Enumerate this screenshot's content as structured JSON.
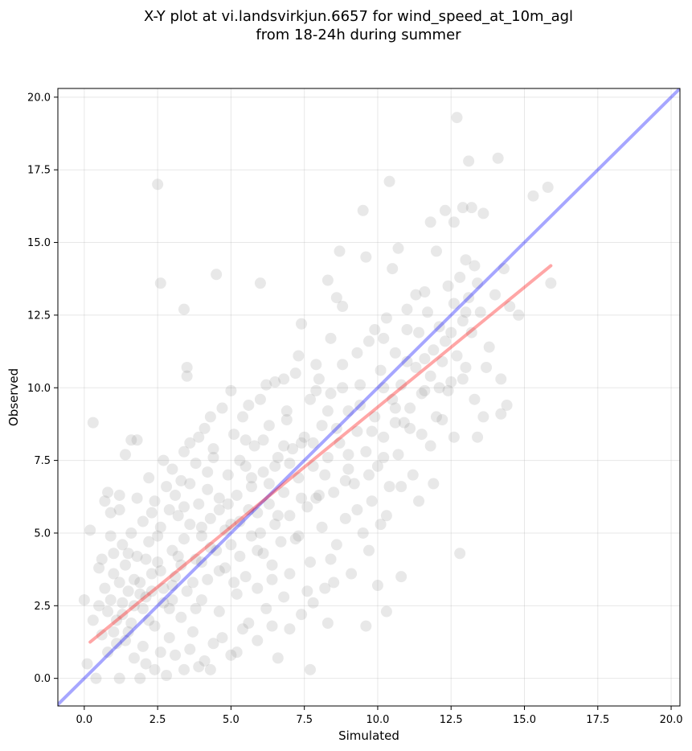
{
  "chart_data": {
    "type": "scatter",
    "title_line1": "X-Y plot at vi.landsvirkjun.6657 for wind_speed_at_10m_agl",
    "title_line2": "from 18-24h during summer",
    "xlabel": "Simulated",
    "ylabel": "Observed",
    "xlim": [
      -0.9,
      20.3
    ],
    "ylim": [
      -0.95,
      20.3
    ],
    "xticks": [
      0.0,
      2.5,
      5.0,
      7.5,
      10.0,
      12.5,
      15.0,
      17.5,
      20.0
    ],
    "yticks": [
      0.0,
      2.5,
      5.0,
      7.5,
      10.0,
      12.5,
      15.0,
      17.5,
      20.0
    ],
    "xtick_labels": [
      "0.0",
      "2.5",
      "5.0",
      "7.5",
      "10.0",
      "12.5",
      "15.0",
      "17.5",
      "20.0"
    ],
    "ytick_labels": [
      "0.0",
      "2.5",
      "5.0",
      "7.5",
      "10.0",
      "12.5",
      "15.0",
      "17.5",
      "20.0"
    ],
    "grid": true,
    "point_color": "#808080",
    "identity_line_color": "#0000ff",
    "fit_line_color": "#ff0000",
    "identity_line": {
      "x": [
        -0.9,
        20.3
      ],
      "y": [
        -0.9,
        20.3
      ]
    },
    "fit_line": {
      "x": [
        0.2,
        15.9
      ],
      "y": [
        1.25,
        14.2
      ]
    },
    "points": [
      [
        0.3,
        8.8
      ],
      [
        0.2,
        5.1
      ],
      [
        0.5,
        2.5
      ],
      [
        0.6,
        4.1
      ],
      [
        0.7,
        6.1
      ],
      [
        0.8,
        6.4
      ],
      [
        0.9,
        5.7
      ],
      [
        1.0,
        4.3
      ],
      [
        1.2,
        6.3
      ],
      [
        1.4,
        7.7
      ],
      [
        1.6,
        8.2
      ],
      [
        1.8,
        8.2
      ],
      [
        2.5,
        17.0
      ],
      [
        2.6,
        13.6
      ],
      [
        3.4,
        12.7
      ],
      [
        3.5,
        10.7
      ],
      [
        3.5,
        10.4
      ],
      [
        4.5,
        13.9
      ],
      [
        6.0,
        13.6
      ],
      [
        7.4,
        12.2
      ],
      [
        8.6,
        13.1
      ],
      [
        8.7,
        14.7
      ],
      [
        8.8,
        12.8
      ],
      [
        8.3,
        13.7
      ],
      [
        9.3,
        11.2
      ],
      [
        9.5,
        16.1
      ],
      [
        9.6,
        14.5
      ],
      [
        9.9,
        12.0
      ],
      [
        10.2,
        11.7
      ],
      [
        10.4,
        17.1
      ],
      [
        10.5,
        14.1
      ],
      [
        10.7,
        14.8
      ],
      [
        11.0,
        12.7
      ],
      [
        11.3,
        13.2
      ],
      [
        11.6,
        13.3
      ],
      [
        11.8,
        15.7
      ],
      [
        12.0,
        14.7
      ],
      [
        12.3,
        16.1
      ],
      [
        12.6,
        15.7
      ],
      [
        12.7,
        19.3
      ],
      [
        12.9,
        16.2
      ],
      [
        13.1,
        17.8
      ],
      [
        13.2,
        16.2
      ],
      [
        13.6,
        16.0
      ],
      [
        13.0,
        14.4
      ],
      [
        13.4,
        13.6
      ],
      [
        14.1,
        17.9
      ],
      [
        14.5,
        12.8
      ],
      [
        14.8,
        12.5
      ],
      [
        15.3,
        16.6
      ],
      [
        15.8,
        16.9
      ],
      [
        15.9,
        13.6
      ],
      [
        14.2,
        10.3
      ],
      [
        14.4,
        9.4
      ],
      [
        14.2,
        9.1
      ],
      [
        13.3,
        9.6
      ],
      [
        13.4,
        8.3
      ],
      [
        12.6,
        8.3
      ],
      [
        12.9,
        10.3
      ],
      [
        12.8,
        4.3
      ],
      [
        11.9,
        6.7
      ],
      [
        11.8,
        8.0
      ],
      [
        11.4,
        6.1
      ],
      [
        12.4,
        9.9
      ],
      [
        10.8,
        3.5
      ],
      [
        10.3,
        2.3
      ],
      [
        10.0,
        3.2
      ],
      [
        9.6,
        1.8
      ],
      [
        8.3,
        1.9
      ],
      [
        7.7,
        0.3
      ],
      [
        6.6,
        0.7
      ],
      [
        5.2,
        0.9
      ],
      [
        4.3,
        0.3
      ],
      [
        3.9,
        0.4
      ],
      [
        3.4,
        0.3
      ],
      [
        2.8,
        0.1
      ],
      [
        2.4,
        0.3
      ],
      [
        1.9,
        0.0
      ],
      [
        1.2,
        0.0
      ],
      [
        0.4,
        0.0
      ],
      [
        0.1,
        0.5
      ],
      [
        0.0,
        2.7
      ],
      [
        0.6,
        1.5
      ],
      [
        0.3,
        2.0
      ],
      [
        0.8,
        0.9
      ],
      [
        1.1,
        1.2
      ],
      [
        1.5,
        1.6
      ],
      [
        2.0,
        1.1
      ],
      [
        2.2,
        2.0
      ],
      [
        2.9,
        1.4
      ],
      [
        0.7,
        3.1
      ],
      [
        0.9,
        2.7
      ],
      [
        1.0,
        3.6
      ],
      [
        1.3,
        2.2
      ],
      [
        1.3,
        4.6
      ],
      [
        1.5,
        3.0
      ],
      [
        1.6,
        5.0
      ],
      [
        1.7,
        2.5
      ],
      [
        1.8,
        4.2
      ],
      [
        1.9,
        3.3
      ],
      [
        2.0,
        5.4
      ],
      [
        2.1,
        2.8
      ],
      [
        2.2,
        4.7
      ],
      [
        2.3,
        3.6
      ],
      [
        2.4,
        6.1
      ],
      [
        2.4,
        1.8
      ],
      [
        2.5,
        4.0
      ],
      [
        2.6,
        5.2
      ],
      [
        2.7,
        3.1
      ],
      [
        2.8,
        6.6
      ],
      [
        2.9,
        2.4
      ],
      [
        3.0,
        4.4
      ],
      [
        3.0,
        7.2
      ],
      [
        3.1,
        3.5
      ],
      [
        3.2,
        5.6
      ],
      [
        3.3,
        2.1
      ],
      [
        3.3,
        6.8
      ],
      [
        3.4,
        4.8
      ],
      [
        3.5,
        3.0
      ],
      [
        3.6,
        8.1
      ],
      [
        3.6,
        5.3
      ],
      [
        3.7,
        1.6
      ],
      [
        3.8,
        4.1
      ],
      [
        3.8,
        7.4
      ],
      [
        3.9,
        6.0
      ],
      [
        4.0,
        2.7
      ],
      [
        4.0,
        4.9
      ],
      [
        4.1,
        8.6
      ],
      [
        4.2,
        3.4
      ],
      [
        4.2,
        6.5
      ],
      [
        4.3,
        5.5
      ],
      [
        4.4,
        1.2
      ],
      [
        4.4,
        7.6
      ],
      [
        4.5,
        4.4
      ],
      [
        4.6,
        2.3
      ],
      [
        4.6,
        6.2
      ],
      [
        4.7,
        9.3
      ],
      [
        4.8,
        3.8
      ],
      [
        4.8,
        5.1
      ],
      [
        4.9,
        7.0
      ],
      [
        5.0,
        0.8
      ],
      [
        5.0,
        4.6
      ],
      [
        5.1,
        8.4
      ],
      [
        5.2,
        2.9
      ],
      [
        5.2,
        6.3
      ],
      [
        5.3,
        5.4
      ],
      [
        5.4,
        9.0
      ],
      [
        5.5,
        3.5
      ],
      [
        5.5,
        7.3
      ],
      [
        5.6,
        1.9
      ],
      [
        5.7,
        4.9
      ],
      [
        5.7,
        6.6
      ],
      [
        5.8,
        8.0
      ],
      [
        5.9,
        3.1
      ],
      [
        5.9,
        5.7
      ],
      [
        6.0,
        9.6
      ],
      [
        6.1,
        4.3
      ],
      [
        6.1,
        7.1
      ],
      [
        6.2,
        2.4
      ],
      [
        6.3,
        6.0
      ],
      [
        6.3,
        8.7
      ],
      [
        6.4,
        3.9
      ],
      [
        6.5,
        5.3
      ],
      [
        6.5,
        10.2
      ],
      [
        6.6,
        7.6
      ],
      [
        6.7,
        4.7
      ],
      [
        6.8,
        2.8
      ],
      [
        6.8,
        6.4
      ],
      [
        6.9,
        8.9
      ],
      [
        7.0,
        5.6
      ],
      [
        7.0,
        3.6
      ],
      [
        7.1,
        7.9
      ],
      [
        7.2,
        10.5
      ],
      [
        7.3,
        4.9
      ],
      [
        7.3,
        6.9
      ],
      [
        7.4,
        2.2
      ],
      [
        7.5,
        8.3
      ],
      [
        7.6,
        5.9
      ],
      [
        7.7,
        9.6
      ],
      [
        7.7,
        4.0
      ],
      [
        7.8,
        7.3
      ],
      [
        7.9,
        6.2
      ],
      [
        8.0,
        10.3
      ],
      [
        8.1,
        5.2
      ],
      [
        8.1,
        8.7
      ],
      [
        8.2,
        3.1
      ],
      [
        8.3,
        7.6
      ],
      [
        8.4,
        9.8
      ],
      [
        8.5,
        6.4
      ],
      [
        8.6,
        4.6
      ],
      [
        8.7,
        8.1
      ],
      [
        8.8,
        10.8
      ],
      [
        8.9,
        5.5
      ],
      [
        9.0,
        7.2
      ],
      [
        9.0,
        9.2
      ],
      [
        9.1,
        3.6
      ],
      [
        9.2,
        6.7
      ],
      [
        9.3,
        8.5
      ],
      [
        9.4,
        10.1
      ],
      [
        9.5,
        5.0
      ],
      [
        9.6,
        7.8
      ],
      [
        9.7,
        11.6
      ],
      [
        9.8,
        6.1
      ],
      [
        9.9,
        9.0
      ],
      [
        10.0,
        7.3
      ],
      [
        10.1,
        10.6
      ],
      [
        10.1,
        5.3
      ],
      [
        10.2,
        8.3
      ],
      [
        10.3,
        12.4
      ],
      [
        10.4,
        6.6
      ],
      [
        10.5,
        9.6
      ],
      [
        10.6,
        11.2
      ],
      [
        10.7,
        7.7
      ],
      [
        10.8,
        10.1
      ],
      [
        10.9,
        8.8
      ],
      [
        11.0,
        12.0
      ],
      [
        11.1,
        9.3
      ],
      [
        11.2,
        7.0
      ],
      [
        11.3,
        10.7
      ],
      [
        11.4,
        11.9
      ],
      [
        11.5,
        8.4
      ],
      [
        11.6,
        9.9
      ],
      [
        11.7,
        12.6
      ],
      [
        11.8,
        10.4
      ],
      [
        11.9,
        11.3
      ],
      [
        12.0,
        9.0
      ],
      [
        12.1,
        12.1
      ],
      [
        12.2,
        10.9
      ],
      [
        12.3,
        11.6
      ],
      [
        12.4,
        13.5
      ],
      [
        12.5,
        10.2
      ],
      [
        12.6,
        12.9
      ],
      [
        12.7,
        11.1
      ],
      [
        12.8,
        13.8
      ],
      [
        12.9,
        12.3
      ],
      [
        13.0,
        10.7
      ],
      [
        13.1,
        13.1
      ],
      [
        13.2,
        11.9
      ],
      [
        13.3,
        14.2
      ],
      [
        13.5,
        12.6
      ],
      [
        13.8,
        11.4
      ],
      [
        13.7,
        10.7
      ],
      [
        14.0,
        13.2
      ],
      [
        14.3,
        14.1
      ],
      [
        13.6,
        9.0
      ],
      [
        12.2,
        8.9
      ],
      [
        11.5,
        9.8
      ],
      [
        10.8,
        6.6
      ],
      [
        10.3,
        5.6
      ],
      [
        9.7,
        4.4
      ],
      [
        1.1,
        2.0
      ],
      [
        1.4,
        1.3
      ],
      [
        1.7,
        0.7
      ],
      [
        2.1,
        0.5
      ],
      [
        2.6,
        0.9
      ],
      [
        3.1,
        0.8
      ],
      [
        3.6,
        1.0
      ],
      [
        4.1,
        0.6
      ],
      [
        4.7,
        1.4
      ],
      [
        5.4,
        1.7
      ],
      [
        5.9,
        1.3
      ],
      [
        6.4,
        1.8
      ],
      [
        7.0,
        1.7
      ],
      [
        7.8,
        2.6
      ],
      [
        8.5,
        3.3
      ],
      [
        0.5,
        3.8
      ],
      [
        0.9,
        4.9
      ],
      [
        1.2,
        5.8
      ],
      [
        1.4,
        3.9
      ],
      [
        1.8,
        6.2
      ],
      [
        2.2,
        6.9
      ],
      [
        2.7,
        7.5
      ],
      [
        3.1,
        6.3
      ],
      [
        3.4,
        7.8
      ],
      [
        3.9,
        8.3
      ],
      [
        4.3,
        9.0
      ],
      [
        5.0,
        9.9
      ],
      [
        5.6,
        9.4
      ],
      [
        6.2,
        10.1
      ],
      [
        6.8,
        10.3
      ],
      [
        7.3,
        11.1
      ],
      [
        7.9,
        10.8
      ],
      [
        8.4,
        11.7
      ],
      [
        1.6,
        1.9
      ],
      [
        2.0,
        2.4
      ],
      [
        2.3,
        3.0
      ],
      [
        2.7,
        2.6
      ],
      [
        3.0,
        3.2
      ],
      [
        3.3,
        3.9
      ],
      [
        3.7,
        3.3
      ],
      [
        4.0,
        4.0
      ],
      [
        4.3,
        4.5
      ],
      [
        4.6,
        3.7
      ],
      [
        5.0,
        5.3
      ],
      [
        5.3,
        4.2
      ],
      [
        5.6,
        5.8
      ],
      [
        6.0,
        5.0
      ],
      [
        6.3,
        6.7
      ],
      [
        6.6,
        5.6
      ],
      [
        7.0,
        7.4
      ],
      [
        7.4,
        6.2
      ],
      [
        7.8,
        8.1
      ],
      [
        8.2,
        7.0
      ],
      [
        8.6,
        8.6
      ],
      [
        9.0,
        7.7
      ],
      [
        9.4,
        9.4
      ],
      [
        9.8,
        8.5
      ],
      [
        10.2,
        10.0
      ],
      [
        10.6,
        9.3
      ],
      [
        11.0,
        10.9
      ],
      [
        1.0,
        1.6
      ],
      [
        1.3,
        2.6
      ],
      [
        1.7,
        3.4
      ],
      [
        2.1,
        4.1
      ],
      [
        2.5,
        4.9
      ],
      [
        2.9,
        5.8
      ],
      [
        3.2,
        4.2
      ],
      [
        3.6,
        6.7
      ],
      [
        4.0,
        5.2
      ],
      [
        4.4,
        7.9
      ],
      [
        4.9,
        6.0
      ],
      [
        5.3,
        7.5
      ],
      [
        5.7,
        6.9
      ],
      [
        6.1,
        8.2
      ],
      [
        6.5,
        7.3
      ],
      [
        6.9,
        9.2
      ],
      [
        7.4,
        8.1
      ],
      [
        7.9,
        9.9
      ],
      [
        8.3,
        9.2
      ],
      [
        8.8,
        10.0
      ],
      [
        0.8,
        2.3
      ],
      [
        1.2,
        3.3
      ],
      [
        1.5,
        4.3
      ],
      [
        1.9,
        2.9
      ],
      [
        2.3,
        5.7
      ],
      [
        2.6,
        3.7
      ],
      [
        3.0,
        2.7
      ],
      [
        3.4,
        5.9
      ],
      [
        3.8,
        2.4
      ],
      [
        4.2,
        7.1
      ],
      [
        4.6,
        5.8
      ],
      [
        5.1,
        3.3
      ],
      [
        5.5,
        8.2
      ],
      [
        5.9,
        4.4
      ],
      [
        6.4,
        3.4
      ],
      [
        6.8,
        8.0
      ],
      [
        7.2,
        4.8
      ],
      [
        7.6,
        3.0
      ],
      [
        8.0,
        6.3
      ],
      [
        8.4,
        4.1
      ],
      [
        8.9,
        6.8
      ],
      [
        9.3,
        5.8
      ],
      [
        9.7,
        7.0
      ],
      [
        10.2,
        7.6
      ],
      [
        10.6,
        8.8
      ],
      [
        11.1,
        8.6
      ],
      [
        11.6,
        11.0
      ],
      [
        12.1,
        10.0
      ],
      [
        12.5,
        11.9
      ],
      [
        13.0,
        12.6
      ]
    ]
  }
}
